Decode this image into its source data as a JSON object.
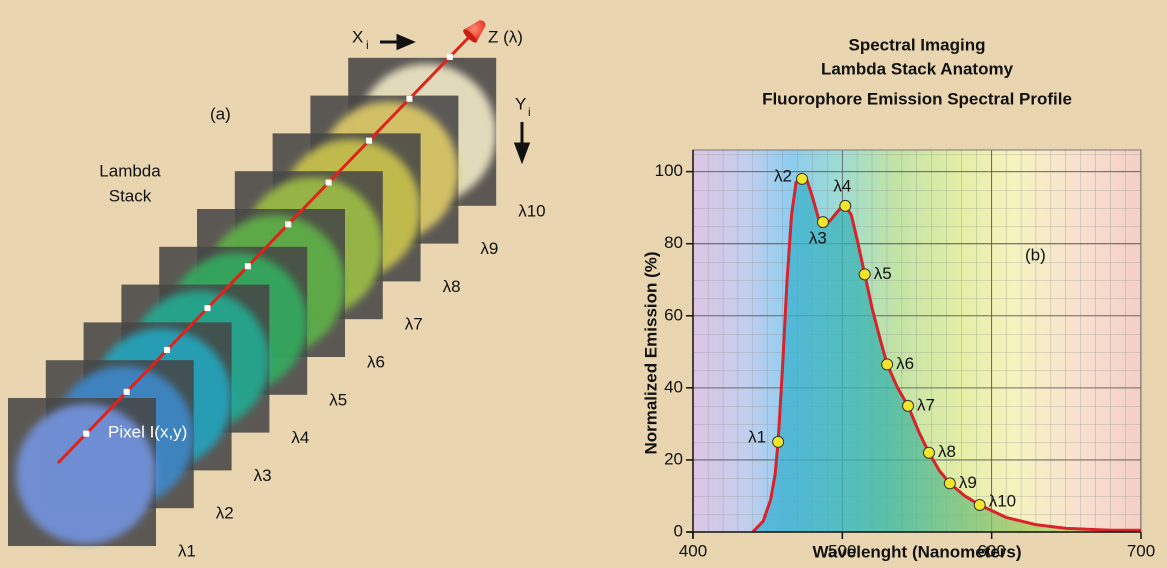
{
  "chart_data": {
    "type": "line",
    "title": [
      "Spectral Imaging",
      "Lambda Stack Anatomy",
      "Fluorophore Emission Spectral Profile"
    ],
    "x_label": "Wavelenght (Nanometers)",
    "y_label": "Normalized Emission (%)",
    "annotation": "(b)",
    "xlim": [
      400,
      700
    ],
    "xticks": [
      400,
      500,
      600,
      700
    ],
    "ylim": [
      0,
      106
    ],
    "yticks": [
      0,
      20,
      40,
      60,
      80,
      100
    ],
    "grid": true,
    "series": [
      {
        "color": "#d8232a",
        "x": [
          440,
          447,
          452,
          455,
          457,
          460,
          463,
          466,
          469,
          473,
          476,
          480,
          484,
          487,
          491,
          495,
          499,
          502,
          506,
          510,
          515,
          520,
          525,
          530,
          537,
          544,
          551,
          558,
          565,
          572,
          582,
          592,
          610,
          630,
          650,
          680,
          700
        ],
        "values": [
          0,
          3,
          9,
          16,
          25,
          46,
          70,
          88,
          97,
          98,
          98,
          93,
          87,
          86,
          86,
          88,
          90,
          90.5,
          88,
          81,
          71.5,
          62,
          54,
          46.5,
          40,
          35,
          28,
          22,
          17,
          13.5,
          10,
          7.5,
          4,
          2,
          1,
          0.5,
          0.5
        ]
      },
      {
        "color": "#f3e62a",
        "labels": [
          "λ1",
          "λ2",
          "λ3",
          "λ4",
          "λ5",
          "λ6",
          "λ7",
          "λ8",
          "λ9",
          "λ10"
        ],
        "x": [
          457,
          473,
          487,
          502,
          515,
          530,
          544,
          558,
          572,
          592
        ],
        "values": [
          25,
          98,
          86,
          90.5,
          71.5,
          46.5,
          35,
          22,
          13.5,
          7.5
        ]
      }
    ]
  },
  "diagram": {
    "panel_label": "(a)",
    "stack_label": [
      "Lambda",
      "Stack"
    ],
    "pixel_label": "Pixel I(x,y)",
    "x_axis": {
      "text": "X",
      "sub": "i"
    },
    "y_axis": {
      "text": "Y",
      "sub": "i"
    },
    "z_axis": "Z (λ)",
    "layers": [
      {
        "label": "λ1",
        "color": "#7392dc"
      },
      {
        "label": "λ2",
        "color": "#3c87c8"
      },
      {
        "label": "λ3",
        "color": "#25a3bb"
      },
      {
        "label": "λ4",
        "color": "#22a88f"
      },
      {
        "label": "λ5",
        "color": "#34a95d"
      },
      {
        "label": "λ6",
        "color": "#5eb046"
      },
      {
        "label": "λ7",
        "color": "#9cbd45"
      },
      {
        "label": "λ8",
        "color": "#c9c24c"
      },
      {
        "label": "λ9",
        "color": "#dcc967"
      },
      {
        "label": "λ10",
        "color": "#eee6c3"
      }
    ]
  }
}
